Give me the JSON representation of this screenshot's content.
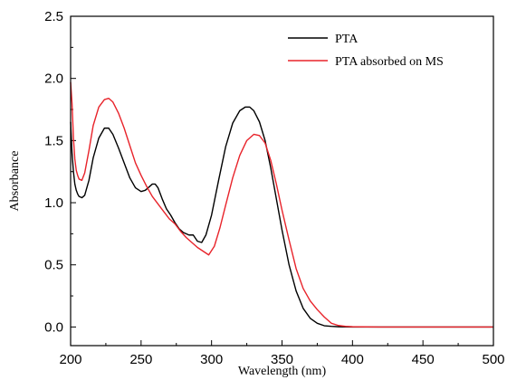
{
  "chart_data": {
    "type": "line",
    "title": "",
    "xlabel": "Wavelength (nm)",
    "ylabel": "Absorbance",
    "xlim": [
      200,
      500
    ],
    "ylim": [
      -0.15,
      2.5
    ],
    "xticks": [
      200,
      250,
      300,
      350,
      400,
      450,
      500
    ],
    "yticks": [
      0.0,
      0.5,
      1.0,
      1.5,
      2.0,
      2.5
    ],
    "xtick_labels": [
      "200",
      "250",
      "300",
      "350",
      "400",
      "450",
      "500"
    ],
    "ytick_labels": [
      "0.0",
      "0.5",
      "1.0",
      "1.5",
      "2.0",
      "2.5"
    ],
    "grid": false,
    "legend_position": "top-right",
    "series": [
      {
        "name": "PTA",
        "color": "#000000",
        "x": [
          200,
          201,
          202,
          203,
          204,
          205,
          206,
          208,
          210,
          213,
          216,
          220,
          224,
          227,
          230,
          234,
          238,
          242,
          246,
          250,
          253,
          256,
          258,
          260,
          262,
          265,
          268,
          271,
          274,
          277,
          280,
          284,
          287,
          290,
          293,
          296,
          300,
          305,
          310,
          315,
          320,
          324,
          327,
          330,
          334,
          338,
          342,
          346,
          350,
          355,
          360,
          365,
          370,
          375,
          380,
          385,
          390,
          395,
          400,
          420,
          450,
          500
        ],
        "y": [
          1.65,
          1.4,
          1.25,
          1.15,
          1.1,
          1.07,
          1.05,
          1.04,
          1.06,
          1.18,
          1.36,
          1.52,
          1.6,
          1.6,
          1.55,
          1.44,
          1.32,
          1.2,
          1.12,
          1.09,
          1.1,
          1.13,
          1.15,
          1.15,
          1.12,
          1.03,
          0.95,
          0.9,
          0.84,
          0.79,
          0.76,
          0.74,
          0.74,
          0.69,
          0.68,
          0.74,
          0.9,
          1.18,
          1.45,
          1.64,
          1.74,
          1.77,
          1.77,
          1.74,
          1.65,
          1.5,
          1.28,
          1.03,
          0.78,
          0.5,
          0.29,
          0.15,
          0.07,
          0.03,
          0.01,
          0.005,
          0.002,
          0.001,
          0.0,
          0.0,
          0.0,
          0.0
        ]
      },
      {
        "name": "PTA absorbed on MS",
        "color": "#e8232a",
        "x": [
          200,
          201,
          202,
          203,
          204,
          205,
          206,
          208,
          210,
          213,
          216,
          220,
          224,
          227,
          230,
          234,
          238,
          242,
          246,
          250,
          254,
          258,
          262,
          266,
          270,
          274,
          278,
          282,
          286,
          290,
          294,
          298,
          302,
          306,
          310,
          315,
          320,
          325,
          330,
          334,
          338,
          342,
          346,
          350,
          355,
          360,
          365,
          370,
          375,
          380,
          385,
          390,
          395,
          400,
          420,
          450,
          500
        ],
        "y": [
          1.97,
          1.8,
          1.52,
          1.35,
          1.26,
          1.22,
          1.19,
          1.18,
          1.24,
          1.42,
          1.62,
          1.77,
          1.83,
          1.84,
          1.81,
          1.72,
          1.6,
          1.46,
          1.32,
          1.22,
          1.13,
          1.05,
          0.99,
          0.93,
          0.87,
          0.83,
          0.77,
          0.72,
          0.68,
          0.64,
          0.61,
          0.58,
          0.65,
          0.8,
          0.98,
          1.2,
          1.38,
          1.5,
          1.55,
          1.54,
          1.48,
          1.34,
          1.15,
          0.94,
          0.7,
          0.47,
          0.31,
          0.21,
          0.14,
          0.08,
          0.03,
          0.012,
          0.005,
          0.002,
          0.0,
          0.0,
          0.0
        ]
      }
    ]
  }
}
